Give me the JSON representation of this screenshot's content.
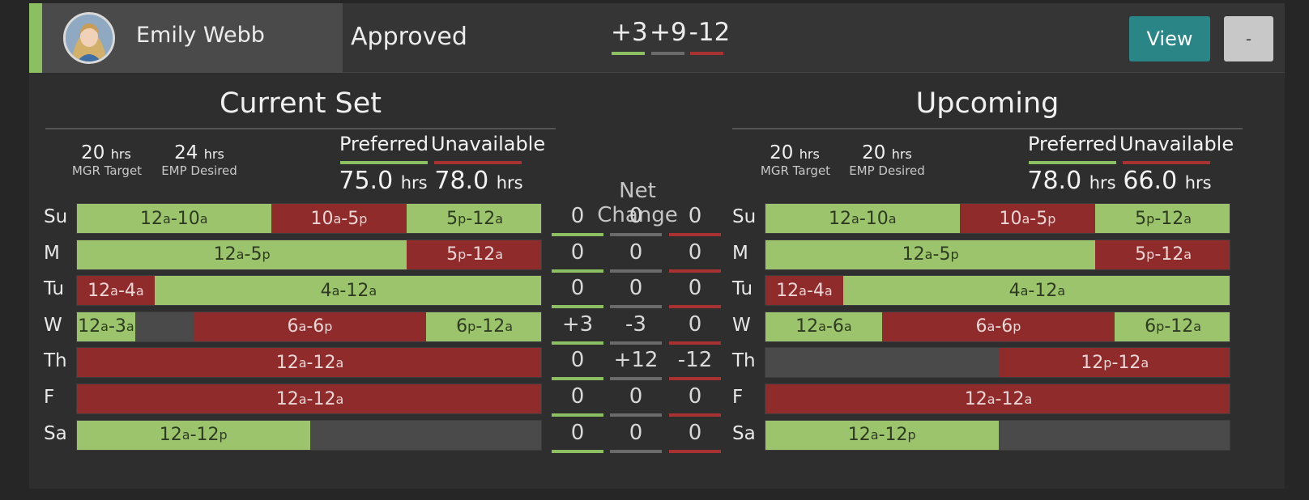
{
  "employee": {
    "name": "Emily Webb",
    "status": "Approved"
  },
  "header_deltas": [
    {
      "value": "+3",
      "color": "#8cbf62"
    },
    {
      "value": "+9",
      "color": "#6b6b6b"
    },
    {
      "value": "-12",
      "color": "#a83232"
    }
  ],
  "actions": {
    "view_label": "View",
    "collapse_label": "-"
  },
  "net_change_title": "Net Change",
  "units": {
    "hrs": "hrs"
  },
  "colors": {
    "preferred": "#9cc46c",
    "unavailable": "#8f2b2b",
    "neutral": "#4a4a4a",
    "accent": "#2a8686"
  },
  "days": [
    "Su",
    "M",
    "Tu",
    "W",
    "Th",
    "F",
    "Sa"
  ],
  "sections": {
    "current": {
      "title": "Current Set",
      "mgr_target": "20",
      "mgr_target_label": "MGR Target",
      "emp_desired": "24",
      "emp_desired_label": "EMP Desired",
      "preferred_label": "Preferred",
      "preferred_hrs": "75.0",
      "unavailable_label": "Unavailable",
      "unavailable_hrs": "78.0",
      "schedule": [
        [
          {
            "type": "pref",
            "a": "12",
            "as": "a",
            "b": "10",
            "bs": "a",
            "start": 0,
            "end": 10
          },
          {
            "type": "unav",
            "a": "10",
            "as": "a",
            "b": "5",
            "bs": "p",
            "start": 10,
            "end": 17
          },
          {
            "type": "pref",
            "a": "5",
            "as": "p",
            "b": "12",
            "bs": "a",
            "start": 17,
            "end": 24
          }
        ],
        [
          {
            "type": "pref",
            "a": "12",
            "as": "a",
            "b": "5",
            "bs": "p",
            "start": 0,
            "end": 17
          },
          {
            "type": "unav",
            "a": "5",
            "as": "p",
            "b": "12",
            "bs": "a",
            "start": 17,
            "end": 24
          }
        ],
        [
          {
            "type": "unav",
            "a": "12",
            "as": "a",
            "b": "4",
            "bs": "a",
            "start": 0,
            "end": 4
          },
          {
            "type": "pref",
            "a": "4",
            "as": "a",
            "b": "12",
            "bs": "a",
            "start": 4,
            "end": 24
          }
        ],
        [
          {
            "type": "pref",
            "a": "12",
            "as": "a",
            "b": "3",
            "bs": "a",
            "start": 0,
            "end": 3
          },
          {
            "type": "unav",
            "a": "6",
            "as": "a",
            "b": "6",
            "bs": "p",
            "start": 6,
            "end": 18
          },
          {
            "type": "pref",
            "a": "6",
            "as": "p",
            "b": "12",
            "bs": "a",
            "start": 18,
            "end": 24
          }
        ],
        [
          {
            "type": "unav",
            "a": "12",
            "as": "a",
            "b": "12",
            "bs": "a",
            "start": 0,
            "end": 24
          }
        ],
        [
          {
            "type": "unav",
            "a": "12",
            "as": "a",
            "b": "12",
            "bs": "a",
            "start": 0,
            "end": 24
          }
        ],
        [
          {
            "type": "pref",
            "a": "12",
            "as": "a",
            "b": "12",
            "bs": "p",
            "start": 0,
            "end": 12
          }
        ]
      ]
    },
    "upcoming": {
      "title": "Upcoming",
      "mgr_target": "20",
      "mgr_target_label": "MGR Target",
      "emp_desired": "20",
      "emp_desired_label": "EMP Desired",
      "preferred_label": "Preferred",
      "preferred_hrs": "78.0",
      "unavailable_label": "Unavailable",
      "unavailable_hrs": "66.0",
      "schedule": [
        [
          {
            "type": "pref",
            "a": "12",
            "as": "a",
            "b": "10",
            "bs": "a",
            "start": 0,
            "end": 10
          },
          {
            "type": "unav",
            "a": "10",
            "as": "a",
            "b": "5",
            "bs": "p",
            "start": 10,
            "end": 17
          },
          {
            "type": "pref",
            "a": "5",
            "as": "p",
            "b": "12",
            "bs": "a",
            "start": 17,
            "end": 24
          }
        ],
        [
          {
            "type": "pref",
            "a": "12",
            "as": "a",
            "b": "5",
            "bs": "p",
            "start": 0,
            "end": 17
          },
          {
            "type": "unav",
            "a": "5",
            "as": "p",
            "b": "12",
            "bs": "a",
            "start": 17,
            "end": 24
          }
        ],
        [
          {
            "type": "unav",
            "a": "12",
            "as": "a",
            "b": "4",
            "bs": "a",
            "start": 0,
            "end": 4
          },
          {
            "type": "pref",
            "a": "4",
            "as": "a",
            "b": "12",
            "bs": "a",
            "start": 4,
            "end": 24
          }
        ],
        [
          {
            "type": "pref",
            "a": "12",
            "as": "a",
            "b": "6",
            "bs": "a",
            "start": 0,
            "end": 6
          },
          {
            "type": "unav",
            "a": "6",
            "as": "a",
            "b": "6",
            "bs": "p",
            "start": 6,
            "end": 18
          },
          {
            "type": "pref",
            "a": "6",
            "as": "p",
            "b": "12",
            "bs": "a",
            "start": 18,
            "end": 24
          }
        ],
        [
          {
            "type": "unav",
            "a": "12",
            "as": "p",
            "b": "12",
            "bs": "a",
            "start": 12,
            "end": 24
          }
        ],
        [
          {
            "type": "unav",
            "a": "12",
            "as": "a",
            "b": "12",
            "bs": "a",
            "start": 0,
            "end": 24
          }
        ],
        [
          {
            "type": "pref",
            "a": "12",
            "as": "a",
            "b": "12",
            "bs": "p",
            "start": 0,
            "end": 12
          }
        ]
      ]
    }
  },
  "net_change": [
    [
      "0",
      "0",
      "0"
    ],
    [
      "0",
      "0",
      "0"
    ],
    [
      "0",
      "0",
      "0"
    ],
    [
      "+3",
      "-3",
      "0"
    ],
    [
      "0",
      "+12",
      "-12"
    ],
    [
      "0",
      "0",
      "0"
    ],
    [
      "0",
      "0",
      "0"
    ]
  ]
}
